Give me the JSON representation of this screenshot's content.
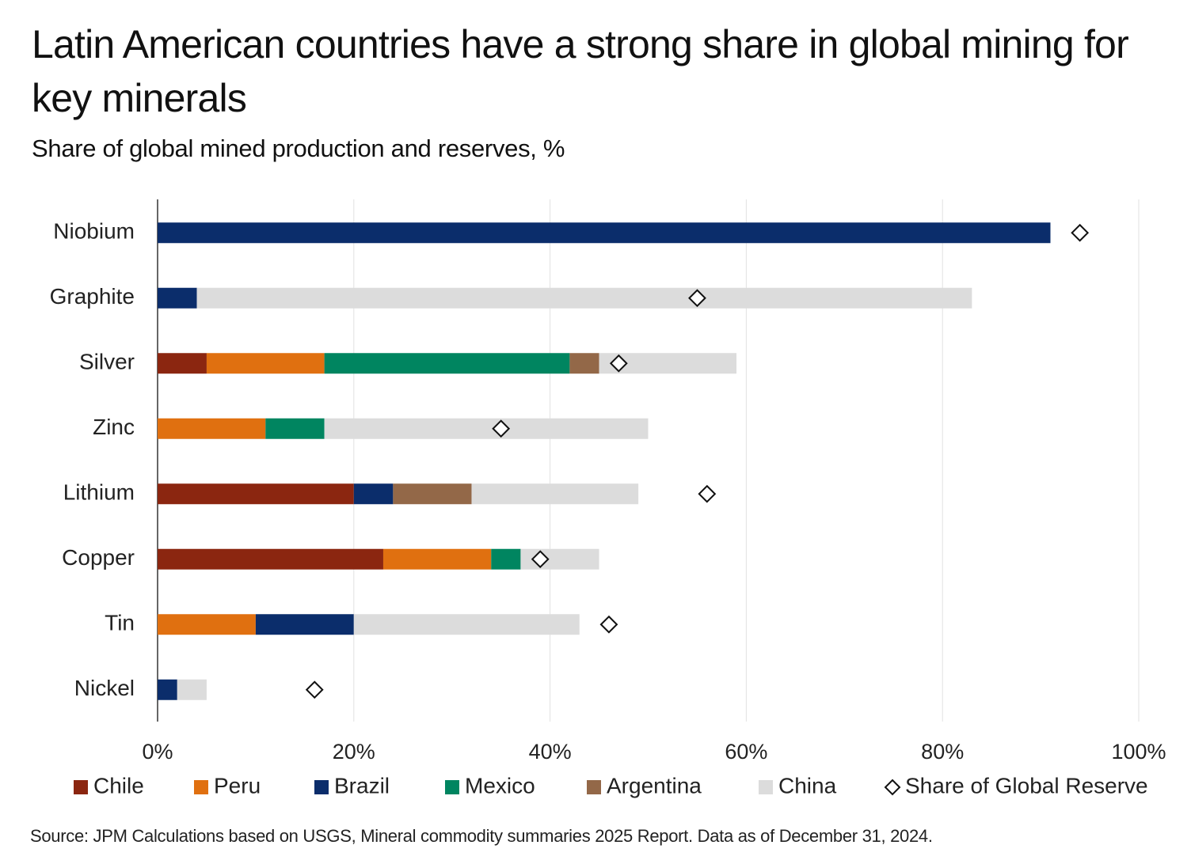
{
  "chart_data": {
    "type": "stacked-bar-horizontal",
    "title": "Latin American countries have a strong share in global mining for key minerals",
    "subtitle": "Share of global mined production and reserves, %",
    "source": "Source: JPM Calculations based on USGS, Mineral commodity summaries 2025 Report. Data as of December 31, 2024.",
    "categories": [
      "Niobium",
      "Graphite",
      "Silver",
      "Zinc",
      "Lithium",
      "Copper",
      "Tin",
      "Nickel"
    ],
    "series": [
      {
        "name": "Chile",
        "color": "#8b2610",
        "values": [
          null,
          null,
          5,
          null,
          20,
          23,
          null,
          null
        ]
      },
      {
        "name": "Peru",
        "color": "#e07010",
        "values": [
          null,
          null,
          12,
          11,
          null,
          11,
          10,
          null
        ]
      },
      {
        "name": "Brazil",
        "color": "#0b2d6b",
        "values": [
          91,
          4,
          null,
          null,
          4,
          null,
          10,
          2
        ]
      },
      {
        "name": "Mexico",
        "color": "#008560",
        "values": [
          null,
          null,
          25,
          6,
          null,
          3,
          null,
          null
        ]
      },
      {
        "name": "Argentina",
        "color": "#936848",
        "values": [
          null,
          null,
          3,
          null,
          8,
          null,
          null,
          null
        ]
      },
      {
        "name": "China",
        "color": "#dcdcdc",
        "values": [
          null,
          79,
          14,
          33,
          17,
          8,
          23,
          3
        ]
      }
    ],
    "reserve": {
      "name": "Share of Global Reserve",
      "values": [
        94,
        55,
        47,
        35,
        56,
        39,
        46,
        16
      ]
    },
    "xlim": [
      0,
      100
    ],
    "xticks": [
      {
        "value": 0,
        "label": "0%"
      },
      {
        "value": 20,
        "label": "20%"
      },
      {
        "value": 40,
        "label": "40%"
      },
      {
        "value": 60,
        "label": "60%"
      },
      {
        "value": 80,
        "label": "80%"
      },
      {
        "value": 100,
        "label": "100%"
      }
    ],
    "grid": true
  }
}
